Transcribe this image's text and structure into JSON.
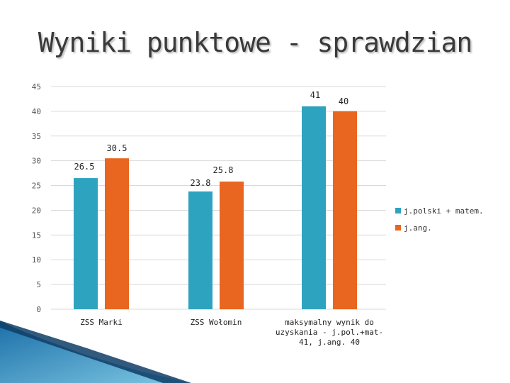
{
  "chart_data": {
    "type": "bar",
    "title": "Wyniki punktowe - sprawdzian",
    "categories": [
      "ZSS Marki",
      "ZSS Wołomin",
      "maksymalny wynik do uzyskania - j.pol.+mat-41, j.ang. 40"
    ],
    "category_lines": [
      [
        "ZSS Marki"
      ],
      [
        "ZSS Wołomin"
      ],
      [
        "maksymalny wynik do",
        "uzyskania - j.pol.+mat-",
        "41, j.ang. 40"
      ]
    ],
    "series": [
      {
        "name": "j.polski + matem.",
        "color": "#2ea3c0",
        "values": [
          26.5,
          23.8,
          41
        ],
        "labels": [
          "26.5",
          "23.8",
          "41"
        ]
      },
      {
        "name": "j.ang.",
        "color": "#e8661f",
        "values": [
          30.5,
          25.8,
          40
        ],
        "labels": [
          "30.5",
          "25.8",
          "40"
        ]
      }
    ],
    "yticks": [
      "0",
      "5",
      "10",
      "15",
      "20",
      "25",
      "30",
      "35",
      "40",
      "45"
    ],
    "ylim": [
      0,
      45
    ],
    "grid": true,
    "legend_position": "right"
  }
}
